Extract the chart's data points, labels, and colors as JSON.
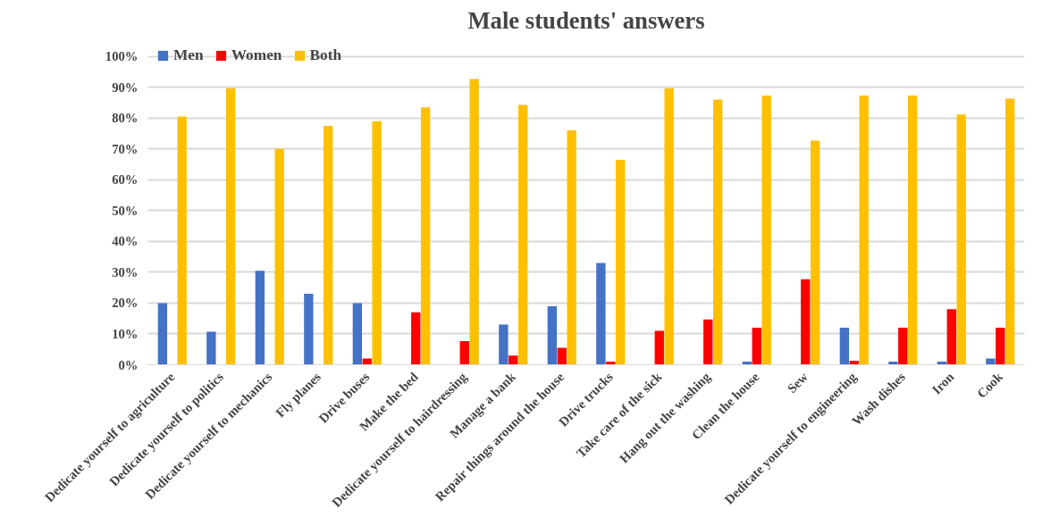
{
  "chart_data": {
    "type": "bar",
    "title": "Male students' answers",
    "categories": [
      "Dedicate yourself to agriculture",
      "Dedicate yourself to politics",
      "Dedicate yourself to mechanics",
      "Fly planes",
      "Drive buses",
      "Make the bed",
      "Dedicate yourself to hairdressing",
      "Manage a bank",
      "Repair things around the house",
      "Drive trucks",
      "Take care of the sick",
      "Hang out the washing",
      "Clean the house",
      "Sew",
      "Dedicate yourself to engineering",
      "Wash dishes",
      "Iron",
      "Cook"
    ],
    "series": [
      {
        "name": "Men",
        "color": "#4472c4",
        "values": [
          20,
          10.7,
          30.5,
          23,
          20,
          0,
          0,
          13,
          19,
          33,
          0,
          0,
          1,
          0,
          12,
          1,
          1,
          2
        ]
      },
      {
        "name": "Women",
        "color": "#ff0000",
        "values": [
          0,
          0,
          0,
          0,
          2,
          17,
          7.7,
          3,
          5.5,
          1,
          11,
          14.7,
          12,
          27.7,
          1.3,
          12,
          18,
          12
        ]
      },
      {
        "name": "Both",
        "color": "#ffc000",
        "values": [
          80.5,
          89.7,
          70,
          77.5,
          79,
          83.5,
          92.7,
          84.3,
          76,
          66.5,
          89.7,
          86,
          87.3,
          72.7,
          87.3,
          87.3,
          81.2,
          86.3
        ]
      }
    ],
    "ylim": [
      0,
      100
    ],
    "yticks": [
      {
        "value": 0,
        "label": "0%"
      },
      {
        "value": 10,
        "label": "10%"
      },
      {
        "value": 20,
        "label": "20%"
      },
      {
        "value": 30,
        "label": "30%"
      },
      {
        "value": 40,
        "label": "40%"
      },
      {
        "value": 50,
        "label": "50%"
      },
      {
        "value": 60,
        "label": "60%"
      },
      {
        "value": 70,
        "label": "70%"
      },
      {
        "value": 80,
        "label": "80%"
      },
      {
        "value": 90,
        "label": "90%"
      },
      {
        "value": 100,
        "label": "100%"
      }
    ],
    "grid": "y",
    "legend": "top left"
  }
}
